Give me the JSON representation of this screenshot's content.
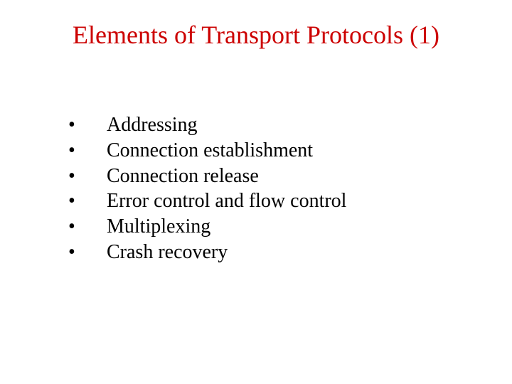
{
  "title": {
    "text": "Elements of Transport Protocols (1)",
    "color": "#cc0000",
    "fontsize": 36
  },
  "bullets": {
    "char": "•",
    "color": "#000000",
    "fontsize": 28,
    "items": [
      "Addressing",
      "Connection establishment",
      "Connection release",
      "Error control and flow control",
      "Multiplexing",
      "Crash recovery"
    ]
  },
  "background_color": "#ffffff"
}
